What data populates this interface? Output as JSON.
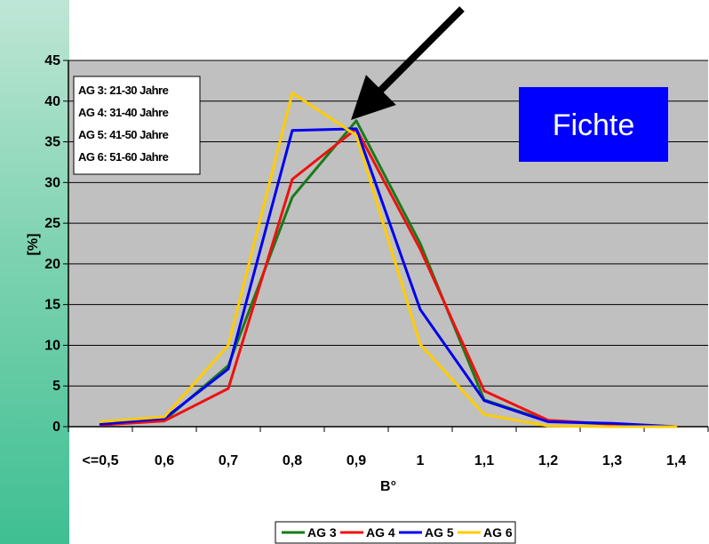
{
  "chart_data": {
    "type": "line",
    "categories": [
      "<=0,5",
      "0,6",
      "0,7",
      "0,8",
      "0,9",
      "1",
      "1,1",
      "1,2",
      "1,3",
      "1,4"
    ],
    "series": [
      {
        "name": "AG3",
        "color": "#1a7a1a",
        "values": [
          0.3,
          0.8,
          7.5,
          28.2,
          37.6,
          22.5,
          3.3,
          0.7,
          0.3,
          0.0
        ]
      },
      {
        "name": "AG4",
        "color": "#ee1111",
        "values": [
          0.2,
          0.7,
          4.7,
          30.4,
          36.6,
          21.8,
          4.4,
          0.8,
          0.3,
          0.0
        ]
      },
      {
        "name": "AG5",
        "color": "#0000ee",
        "values": [
          0.3,
          1.0,
          7.1,
          36.4,
          36.6,
          14.4,
          3.2,
          0.6,
          0.4,
          0.0
        ]
      },
      {
        "name": "AG6",
        "color": "#ffcc00",
        "values": [
          0.6,
          1.2,
          10.0,
          41.0,
          35.8,
          10.1,
          1.5,
          0.1,
          0.0,
          0.0
        ]
      }
    ],
    "ylabel": "[%]",
    "xlabel": "B°",
    "ylim": [
      0,
      45
    ],
    "yticks": [
      "0",
      "5",
      "10",
      "15",
      "20",
      "25",
      "30",
      "35",
      "40",
      "45"
    ],
    "grid": true,
    "legend_position": "bottom",
    "plot_background": "#c0c0c0",
    "annotation_lines": [
      "AG 3: 21-30 Jahre",
      "AG 4: 31-40 Jahre",
      "AG 5: 41-50 Jahre",
      "AG 6: 51-60 Jahre"
    ],
    "badge_text": "Fichte",
    "badge_color": "#0000ff",
    "legend_labels": [
      "AG 3",
      "AG 4",
      "AG 5",
      "AG 6"
    ]
  }
}
